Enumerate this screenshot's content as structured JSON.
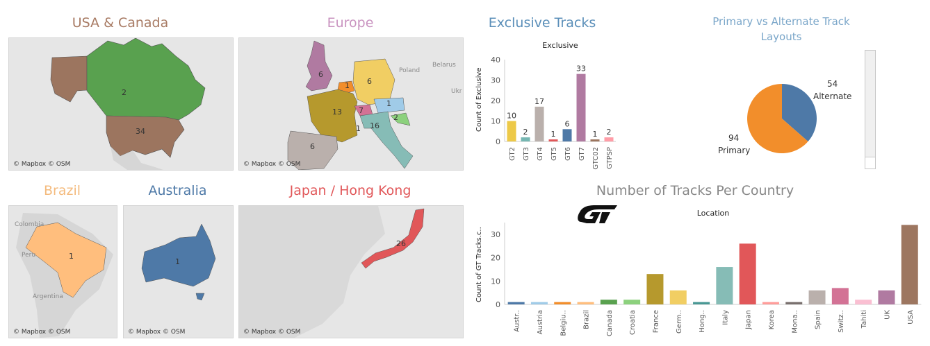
{
  "maps": {
    "usa_canada": {
      "title": "USA & Canada",
      "title_color": "#a87b64",
      "credit": "© Mapbox © OSM",
      "labels": {
        "canada": "2",
        "usa": "34"
      }
    },
    "europe": {
      "title": "Europe",
      "title_color": "#c993c0",
      "credit": "© Mapbox © OSM",
      "geo": {
        "poland": "Poland",
        "belarus": "Belarus",
        "ukr": "Ukr"
      },
      "labels": {
        "uk": "6",
        "belgium": "1",
        "germany": "6",
        "france": "13",
        "switzerland": "7",
        "austria": "1",
        "croatia": "2",
        "monaco": "1",
        "italy": "16",
        "spain": "6"
      }
    },
    "brazil": {
      "title": "Brazil",
      "title_color": "#f4bb7e",
      "credit": "© Mapbox © OSM",
      "geo": {
        "colombia": "Colombia",
        "peru": "Peru",
        "argentina": "Argentina"
      },
      "labels": {
        "brazil": "1"
      }
    },
    "australia": {
      "title": "Australia",
      "title_color": "#4e79a7",
      "credit": "© Mapbox © OSM",
      "labels": {
        "australia": "1"
      }
    },
    "japan": {
      "title": "Japan / Hong Kong",
      "title_color": "#e15759",
      "credit": "© Mapbox © OSM",
      "labels": {
        "japan": "26"
      }
    }
  },
  "exclusive": {
    "section_title": "Exclusive Tracks",
    "section_title_color": "#5b8fb9",
    "chart_title": "Exclusive",
    "ylabel": "Count of Exclusive"
  },
  "pie": {
    "section_title": "Primary vs Alternate Track Layouts",
    "section_title_color": "#7aa6c9",
    "alternate_value": "54",
    "alternate_label": "Alternate",
    "primary_value": "94",
    "primary_label": "Primary"
  },
  "country": {
    "section_title": "Number of Tracks Per Country",
    "section_title_color": "#888888",
    "chart_title": "Location",
    "ylabel": "Count of GT Tracks.c.."
  },
  "chart_data": [
    {
      "type": "bar",
      "title": "Exclusive",
      "ylabel": "Count of Exclusive",
      "categories": [
        "GT2",
        "GT3",
        "GT4",
        "GT5",
        "GT6",
        "GT7",
        "GTC02",
        "GTPSP"
      ],
      "values": [
        10,
        2,
        17,
        1,
        6,
        33,
        1,
        2
      ],
      "colors": [
        "#edc948",
        "#76b7b2",
        "#bab0ac",
        "#e15759",
        "#4e79a7",
        "#b07aa1",
        "#9c755f",
        "#ff9da7"
      ],
      "yticks": [
        0,
        10,
        20,
        30,
        40
      ],
      "ylim": [
        0,
        40
      ],
      "data_labels": true,
      "grid": false
    },
    {
      "type": "pie",
      "title": "Primary vs Alternate Track Layouts",
      "slices": [
        {
          "label": "Alternate",
          "value": 54,
          "color": "#4e79a7"
        },
        {
          "label": "Primary",
          "value": 94,
          "color": "#f28e2b"
        }
      ]
    },
    {
      "type": "bar",
      "title": "Location",
      "ylabel": "Count of GT Tracks.c..",
      "categories": [
        "Austr..",
        "Austria",
        "Belgiu..",
        "Brazil",
        "Canada",
        "Croatia",
        "France",
        "Germ..",
        "Hong..",
        "Italy",
        "Japan",
        "Korea",
        "Mona..",
        "Spain",
        "Switz..",
        "Tahiti",
        "UK",
        "USA"
      ],
      "values": [
        1,
        1,
        1,
        1,
        2,
        2,
        13,
        6,
        1,
        16,
        26,
        1,
        1,
        6,
        7,
        2,
        6,
        34
      ],
      "colors": [
        "#4e79a7",
        "#a0cbe8",
        "#f28e2b",
        "#ffbe7d",
        "#59a14f",
        "#8cd17d",
        "#b6992d",
        "#f1ce63",
        "#499894",
        "#86bcb6",
        "#e15759",
        "#ff9d9a",
        "#79706e",
        "#bab0ac",
        "#d37295",
        "#fabfd2",
        "#b07aa1",
        "#9d7660"
      ],
      "yticks": [
        0,
        10,
        20,
        30
      ],
      "ylim": [
        0,
        35
      ],
      "grid": false
    }
  ]
}
